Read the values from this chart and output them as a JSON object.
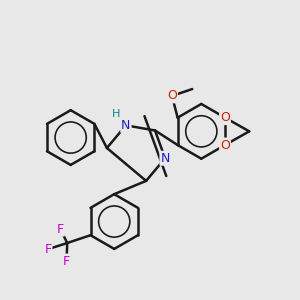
{
  "background_color": "#e8e8e8",
  "bond_color": "#1a1a1a",
  "bond_width": 1.8,
  "atom_colors": {
    "N": "#1a1acc",
    "H": "#008b8b",
    "O": "#cc2200",
    "F": "#cc00cc",
    "C": "#1a1a1a"
  },
  "font_size": 9
}
